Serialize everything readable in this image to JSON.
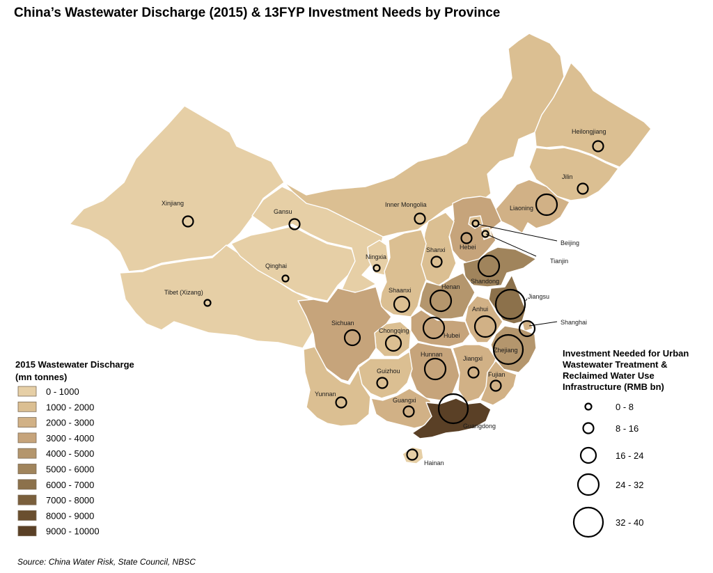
{
  "title": "China’s Wastewater Discharge (2015) & 13FYP Investment Needs by Province",
  "source": "Source: China Water Risk, State Council, NBSC",
  "colors": {
    "classes": [
      "#e6cfa6",
      "#dbbf92",
      "#d1b186",
      "#c6a47b",
      "#b4966d",
      "#a0845c",
      "#8c714b",
      "#7a5f3c",
      "#6a4f2f",
      "#5a4026"
    ],
    "boundary": "#ffffff",
    "bubble_stroke": "#000000"
  },
  "legend_discharge": {
    "title_line1": "2015 Wastewater Discharge",
    "title_line2": "(mn tonnes)",
    "items": [
      "0 - 1000",
      "1000 - 2000",
      "2000 - 3000",
      "3000 - 4000",
      "4000 - 5000",
      "5000 - 6000",
      "6000 - 7000",
      "7000 - 8000",
      "8000 - 9000",
      "9000 - 10000"
    ]
  },
  "legend_investment": {
    "title_line1": "Investment Needed for Urban",
    "title_line2": "Wastewater Treatment &",
    "title_line3": "Reclaimed Water Use",
    "title_line4": "Infrastructure (RMB bn)",
    "items": [
      "0 - 8",
      "8 - 16",
      "16 - 24",
      "24 - 32",
      "32 - 40"
    ]
  },
  "provinces": [
    {
      "name": "Xinjiang",
      "discharge_class": 0,
      "investment_class": 1
    },
    {
      "name": "Tibet (Xizang)",
      "discharge_class": 0,
      "investment_class": 0
    },
    {
      "name": "Qinghai",
      "discharge_class": 0,
      "investment_class": 0
    },
    {
      "name": "Gansu",
      "discharge_class": 0,
      "investment_class": 1
    },
    {
      "name": "Inner Mongolia",
      "discharge_class": 1,
      "investment_class": 1
    },
    {
      "name": "Heilongjiang",
      "discharge_class": 1,
      "investment_class": 1
    },
    {
      "name": "Jilin",
      "discharge_class": 1,
      "investment_class": 1
    },
    {
      "name": "Liaoning",
      "discharge_class": 2,
      "investment_class": 3
    },
    {
      "name": "Beijing",
      "discharge_class": 1,
      "investment_class": 0
    },
    {
      "name": "Tianjin",
      "discharge_class": 0,
      "investment_class": 0
    },
    {
      "name": "Hebei",
      "discharge_class": 3,
      "investment_class": 1
    },
    {
      "name": "Shanxi",
      "discharge_class": 1,
      "investment_class": 1
    },
    {
      "name": "Ningxia",
      "discharge_class": 0,
      "investment_class": 0
    },
    {
      "name": "Shaanxi",
      "discharge_class": 1,
      "investment_class": 2
    },
    {
      "name": "Henan",
      "discharge_class": 4,
      "investment_class": 3
    },
    {
      "name": "Shandong",
      "discharge_class": 5,
      "investment_class": 3
    },
    {
      "name": "Jiangsu",
      "discharge_class": 6,
      "investment_class": 4
    },
    {
      "name": "Shanghai",
      "discharge_class": 2,
      "investment_class": 2
    },
    {
      "name": "Anhui",
      "discharge_class": 2,
      "investment_class": 3
    },
    {
      "name": "Hubei",
      "discharge_class": 3,
      "investment_class": 3
    },
    {
      "name": "Sichuan",
      "discharge_class": 3,
      "investment_class": 2
    },
    {
      "name": "Chongqing",
      "discharge_class": 1,
      "investment_class": 2
    },
    {
      "name": "Zhejiang",
      "discharge_class": 4,
      "investment_class": 4
    },
    {
      "name": "Hunnan",
      "discharge_class": 3,
      "investment_class": 3
    },
    {
      "name": "Jiangxi",
      "discharge_class": 2,
      "investment_class": 1
    },
    {
      "name": "Fujian",
      "discharge_class": 2,
      "investment_class": 1
    },
    {
      "name": "Guizhou",
      "discharge_class": 1,
      "investment_class": 1
    },
    {
      "name": "Yunnan",
      "discharge_class": 1,
      "investment_class": 1
    },
    {
      "name": "Guangxi",
      "discharge_class": 2,
      "investment_class": 1
    },
    {
      "name": "Guangdong",
      "discharge_class": 9,
      "investment_class": 4
    },
    {
      "name": "Hainan",
      "discharge_class": 0,
      "investment_class": 1
    }
  ]
}
